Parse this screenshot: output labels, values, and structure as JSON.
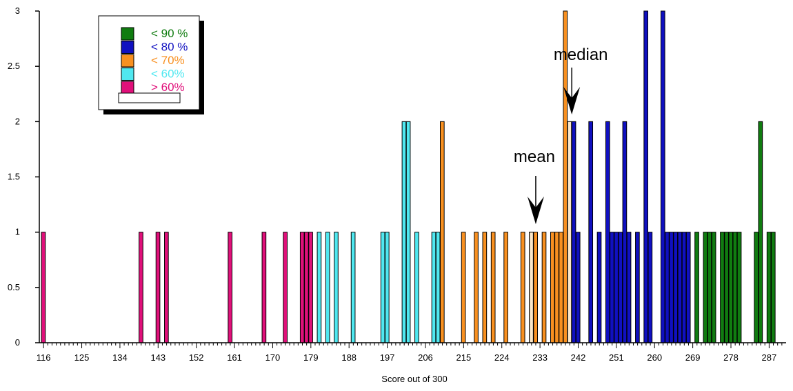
{
  "chart_data": {
    "type": "bar",
    "title": "",
    "xlabel": "Score out of 300",
    "ylabel": "",
    "xlim": [
      115,
      291
    ],
    "ylim": [
      0,
      3
    ],
    "y_ticks": [
      "0",
      "0.5",
      "1",
      "1.5",
      "2",
      "2.5",
      "3"
    ],
    "x_ticks": [
      "116",
      "125",
      "134",
      "143",
      "152",
      "161",
      "170",
      "179",
      "188",
      "197",
      "206",
      "215",
      "224",
      "233",
      "242",
      "251",
      "260",
      "269",
      "278",
      "287"
    ],
    "legend": [
      {
        "label": "< 90 %",
        "color": "#107c10"
      },
      {
        "label": "< 80 %",
        "color": "#1010c0"
      },
      {
        "label": "< 70%",
        "color": "#f89020"
      },
      {
        "label": "< 60%",
        "color": "#50e8f0"
      },
      {
        "label": "> 60%",
        "color": "#e0107a"
      }
    ],
    "series": [
      {
        "name": "> 60%",
        "color": "#e0107a",
        "x": [
          116,
          139,
          143,
          145,
          160,
          168,
          173,
          177,
          178,
          179
        ],
        "values": [
          1,
          1,
          1,
          1,
          1,
          1,
          1,
          1,
          1,
          1
        ]
      },
      {
        "name": "< 60%",
        "color": "#50e8f0",
        "x": [
          181,
          183,
          185,
          189,
          196,
          197,
          201,
          202,
          204,
          208,
          209
        ],
        "values": [
          1,
          1,
          1,
          1,
          1,
          1,
          2,
          2,
          1,
          1,
          1
        ]
      },
      {
        "name": "< 70%",
        "color": "#f89020",
        "x": [
          210,
          215,
          218,
          220,
          222,
          225,
          229,
          231,
          232,
          234,
          236,
          237,
          238,
          239
        ],
        "values": [
          2,
          1,
          1,
          1,
          1,
          1,
          1,
          1,
          1,
          1,
          1,
          1,
          1,
          3
        ]
      },
      {
        "name": "< 80 %",
        "color": "#1010c0",
        "x": [
          241,
          242,
          245,
          247,
          249,
          250,
          251,
          252,
          253,
          254,
          256,
          258,
          259,
          262,
          263,
          264,
          265,
          266,
          267,
          268
        ],
        "values": [
          2,
          1,
          2,
          1,
          2,
          1,
          1,
          1,
          2,
          1,
          1,
          3,
          1,
          3,
          1,
          1,
          1,
          1,
          1,
          1
        ]
      },
      {
        "name": "< 90 %",
        "color": "#107c10",
        "x": [
          270,
          272,
          273,
          274,
          276,
          277,
          278,
          279,
          280,
          284,
          285,
          287,
          288
        ],
        "values": [
          1,
          1,
          1,
          1,
          1,
          1,
          1,
          1,
          1,
          1,
          2,
          1,
          1
        ]
      }
    ],
    "mean_bar": {
      "x": 231,
      "value": 1,
      "color": "#fbe7c9"
    },
    "median_bar": {
      "x": 240,
      "value": 2,
      "color": "#fbe7c9"
    },
    "annotations": [
      {
        "text": "mean",
        "x": 232
      },
      {
        "text": "median",
        "x": 240
      }
    ]
  }
}
